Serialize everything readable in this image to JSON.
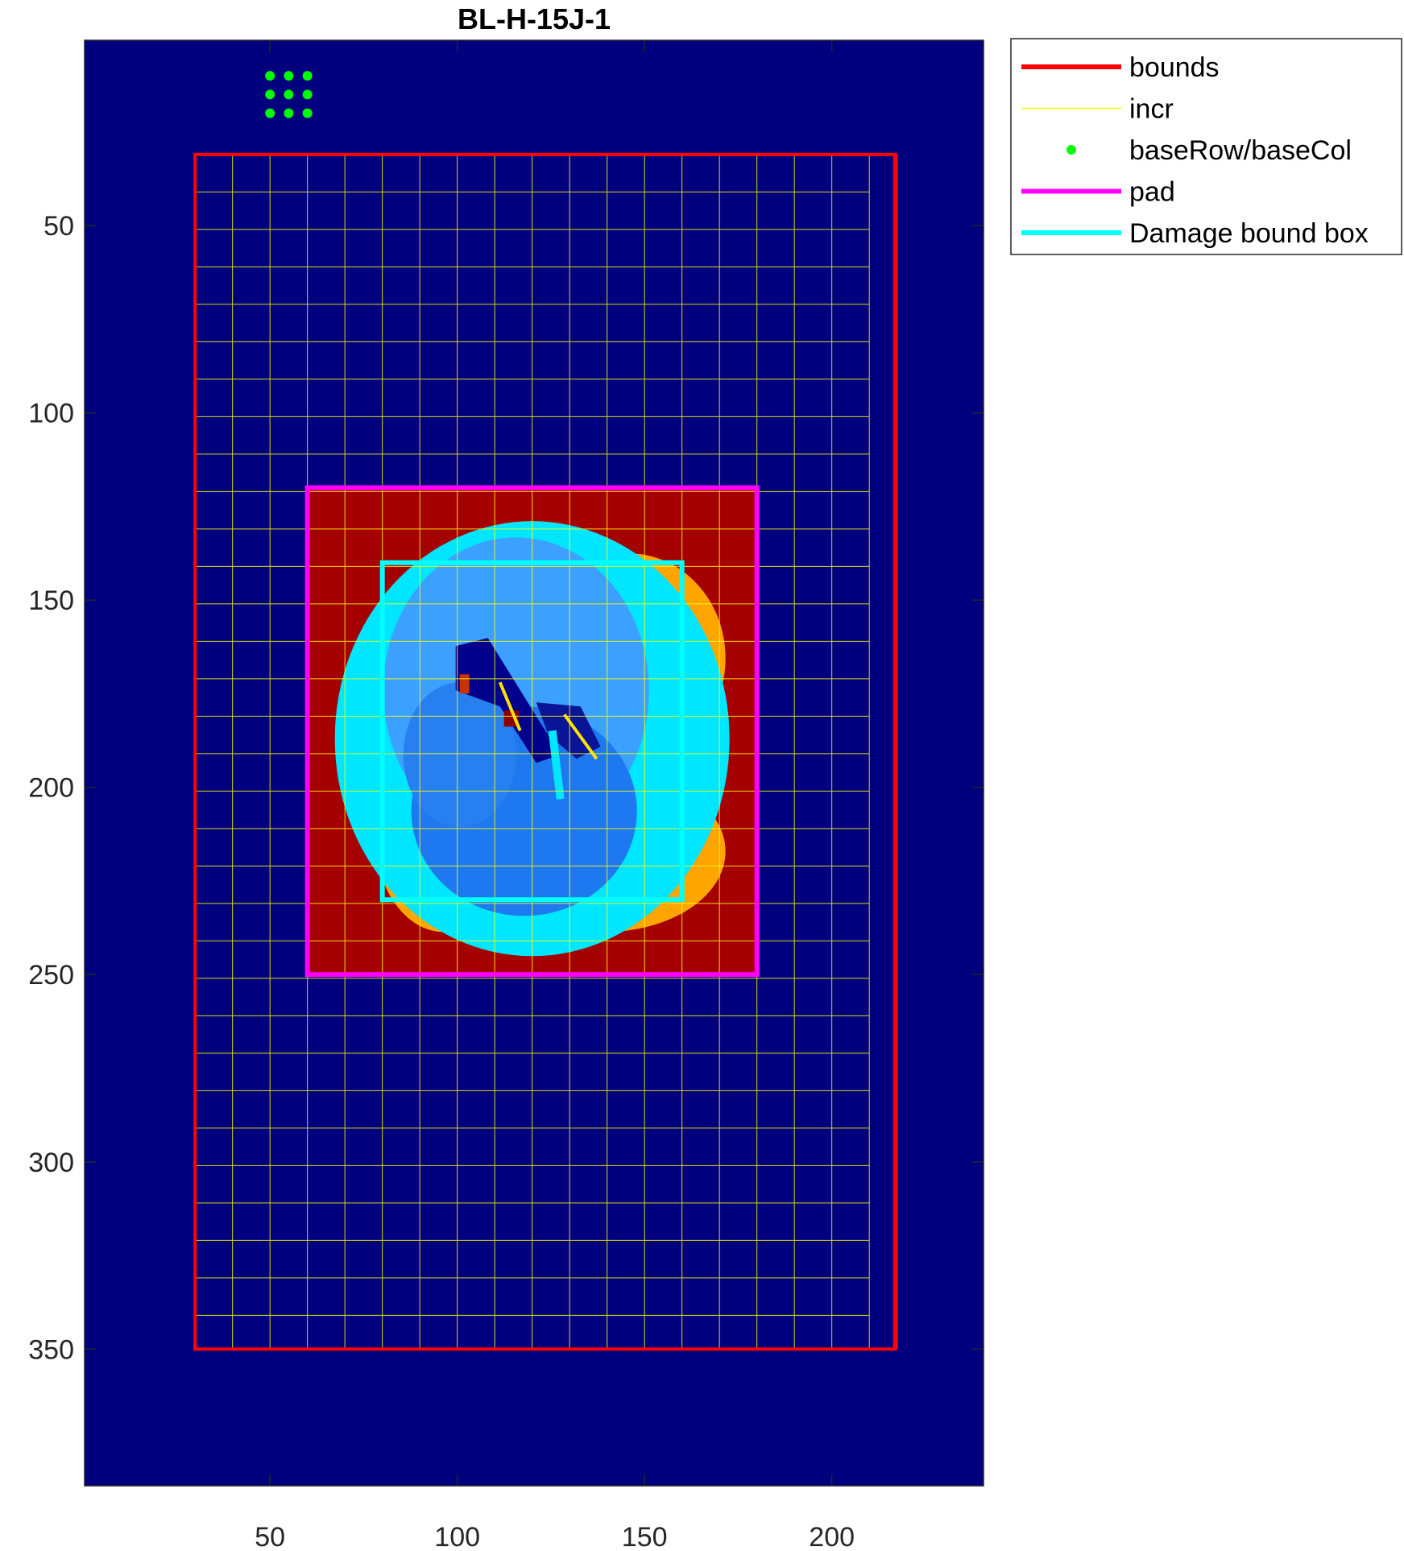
{
  "chart_data": {
    "type": "image",
    "title": "BL-H-15J-1",
    "xlabel": "",
    "ylabel": "",
    "xlim": [
      0.5,
      240.5
    ],
    "ylim": [
      0.5,
      386.5
    ],
    "y_reversed": true,
    "xticks": [
      50,
      100,
      150,
      200
    ],
    "yticks": [
      50,
      100,
      150,
      200,
      250,
      300,
      350
    ],
    "background_color": "#00007f",
    "legend_position": "outside-top-right",
    "series": [
      {
        "name": "bounds",
        "kind": "rectangle",
        "color": "#ff0000",
        "x": [
          30,
          217
        ],
        "y": [
          31,
          350
        ]
      },
      {
        "name": "incr",
        "kind": "grid",
        "color": "#ffff00",
        "x_start": 30,
        "x_end": 210,
        "x_step": 10,
        "y_start": 31,
        "y_end": 350,
        "y_step": 10
      },
      {
        "name": "baseRow/baseCol",
        "kind": "points",
        "color": "#00ff00",
        "x": [
          50,
          55,
          60
        ],
        "y": [
          10,
          15,
          20
        ]
      },
      {
        "name": "pad",
        "kind": "rectangle",
        "color": "#ff00ff",
        "x": [
          60,
          180
        ],
        "y": [
          120,
          250
        ]
      },
      {
        "name": "Damage bound box",
        "kind": "rectangle",
        "color": "#00ffff",
        "x": [
          80,
          160
        ],
        "y": [
          140,
          230
        ]
      }
    ],
    "image_regions": {
      "pad_fill_color": "#a50000",
      "damage_blob": {
        "center_x": 120,
        "center_y": 187,
        "colors": [
          "#ffd21e",
          "#ffa500",
          "#ffe100",
          "#78ff78",
          "#00e6ff",
          "#3ca0ff",
          "#1e78f0",
          "#2880f0"
        ]
      }
    }
  }
}
